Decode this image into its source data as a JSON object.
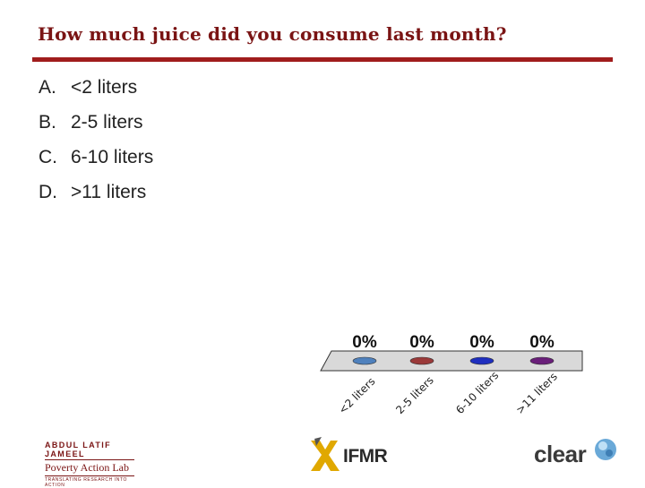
{
  "slide": {
    "title": "How much juice did you consume last month?",
    "title_color": "#7a1414",
    "rule_color": "#a01c1c"
  },
  "options": [
    {
      "letter": "A.",
      "text": "<2 liters"
    },
    {
      "letter": "B.",
      "text": "2-5 liters"
    },
    {
      "letter": "C.",
      "text": "6-10 liters"
    },
    {
      "letter": "D.",
      "text": ">11 liters"
    }
  ],
  "chart_data": {
    "type": "bar",
    "categories": [
      "<2 liters",
      "2-5 liters",
      "6-10 liters",
      ">11 liters"
    ],
    "values": [
      0,
      0,
      0,
      0
    ],
    "value_labels": [
      "0%",
      "0%",
      "0%",
      "0%"
    ],
    "colors": [
      "#4f81bd",
      "#9b3a3a",
      "#1f2fbf",
      "#6a1f7a"
    ],
    "title": "",
    "xlabel": "",
    "ylabel": "",
    "ylim": [
      0,
      100
    ]
  },
  "logos": {
    "jpal": {
      "line1": "ABDUL LATIF JAMEEL",
      "line2": "Poverty Action Lab",
      "line3": "TRANSLATING RESEARCH INTO ACTION"
    },
    "ifmr": {
      "text": "IFMR"
    },
    "clear": {
      "text": "clear"
    }
  }
}
